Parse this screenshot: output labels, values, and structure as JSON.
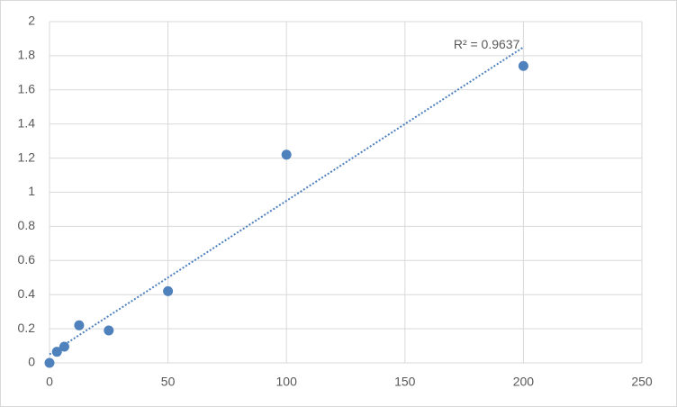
{
  "chart_data": {
    "type": "scatter",
    "x": [
      0,
      3.125,
      6.25,
      12.5,
      25,
      50,
      100,
      200
    ],
    "values": [
      0,
      0.065,
      0.095,
      0.22,
      0.19,
      0.42,
      1.22,
      1.74
    ],
    "color": "#4f81bd",
    "xlim": [
      0,
      250
    ],
    "xticks": [
      0,
      50,
      100,
      150,
      200,
      250
    ],
    "ylim": [
      0,
      2
    ],
    "yticks": [
      0,
      0.2,
      0.4,
      0.6,
      0.8,
      1,
      1.2,
      1.4,
      1.6,
      1.8,
      2
    ],
    "grid": true,
    "trendline": {
      "x": [
        0,
        200
      ],
      "y": [
        0.05,
        1.85
      ],
      "label": "R² = 0.9637"
    }
  }
}
